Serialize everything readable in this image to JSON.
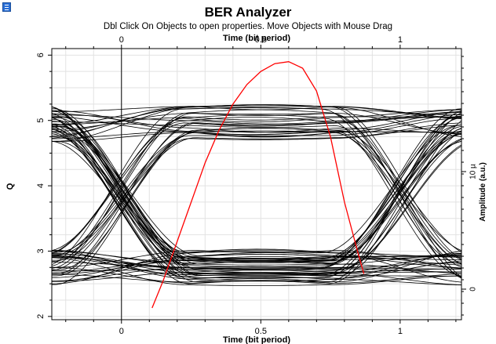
{
  "window": {
    "title": "BER Analyzer",
    "hint": "Dbl Click On Objects to open properties.  Move Objects with Mouse Drag",
    "icon": "app-icon"
  },
  "chart_data": {
    "type": "line",
    "title": "",
    "x_top_label": "Time (bit period)",
    "xlabel": "Time (bit period)",
    "ylabel": "Q",
    "y2label": "Amplitude (a.u.)",
    "xlim": [
      -0.25,
      1.22
    ],
    "ylim": [
      1.95,
      6.1
    ],
    "x_ticks": [
      0,
      0.5,
      1
    ],
    "x_tick_labels": [
      "0",
      "0.5",
      "1"
    ],
    "y_ticks": [
      2,
      3,
      4,
      5,
      6
    ],
    "y_tick_labels": [
      "2",
      "3",
      "4",
      "5",
      "6"
    ],
    "y2_tick_labels": [
      "0",
      "10 µ"
    ],
    "grid": true,
    "eye_diagram": {
      "traces": "many overlaid bit-period traces",
      "color": "#000000",
      "high_level": 4.95,
      "low_level": 2.75,
      "crossing_times": [
        0,
        1
      ],
      "crossing_level": 3.85
    },
    "series": [
      {
        "color": "#ff0000",
        "x": [
          0.11,
          0.15,
          0.2,
          0.25,
          0.3,
          0.35,
          0.4,
          0.45,
          0.5,
          0.55,
          0.6,
          0.65,
          0.7,
          0.75,
          0.8,
          0.85,
          0.87
        ],
        "y": [
          2.13,
          2.55,
          3.15,
          3.75,
          4.35,
          4.85,
          5.25,
          5.55,
          5.75,
          5.87,
          5.9,
          5.8,
          5.45,
          4.75,
          3.75,
          2.95,
          2.65
        ]
      }
    ]
  }
}
